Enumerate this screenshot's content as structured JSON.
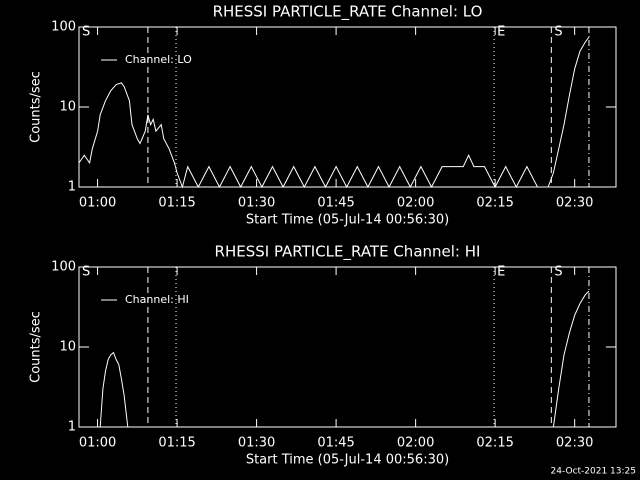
{
  "chart_data": [
    {
      "type": "line",
      "title": "RHESSI PARTICLE_RATE Channel: LO",
      "xlabel": "Start Time (05-Jul-14 00:56:30)",
      "ylabel": "Counts/sec",
      "x": [
        56.5,
        57.5,
        58.5,
        59,
        60,
        60.5,
        61.5,
        62.5,
        63.5,
        64.5,
        65,
        66,
        66.5,
        67.5,
        68,
        69,
        69.5,
        70,
        70.5,
        71,
        72,
        72.5,
        73.5,
        74.5,
        75,
        76,
        77,
        79,
        81,
        83,
        85,
        87,
        89,
        91,
        93,
        95,
        97,
        99,
        101,
        103,
        105,
        107,
        109,
        111,
        113,
        115,
        117,
        119,
        121,
        123,
        125,
        127,
        129,
        130,
        131,
        133,
        135,
        137,
        139,
        141,
        143,
        144,
        145,
        146,
        147,
        148,
        149,
        150,
        151,
        152,
        152.7
      ],
      "series": [
        {
          "name": "Channel: LO",
          "color": "#ffffff",
          "values": [
            2,
            2.5,
            2,
            3,
            5,
            8,
            12,
            16,
            19,
            20,
            18,
            12,
            6,
            4,
            3.5,
            5,
            8,
            6,
            7,
            5,
            6,
            4,
            3,
            2,
            1.5,
            1,
            1.8,
            1,
            1.8,
            1,
            1.8,
            1,
            1.8,
            1,
            1.8,
            1,
            1.8,
            1,
            1.8,
            1,
            1.8,
            1,
            1.8,
            1,
            1.8,
            1,
            1.8,
            1,
            1.8,
            1,
            1.8,
            1.8,
            1.8,
            2.5,
            1.8,
            1.8,
            1,
            1.8,
            1,
            1.8,
            1,
            1,
            1,
            1.5,
            3,
            6,
            14,
            30,
            50,
            65,
            75
          ]
        }
      ],
      "xlim": [
        56.5,
        157.8
      ],
      "ylim": [
        1,
        100
      ],
      "log_y": true,
      "xticks": [
        {
          "value": 60,
          "label": "01:00"
        },
        {
          "value": 75,
          "label": "01:15"
        },
        {
          "value": 90,
          "label": "01:30"
        },
        {
          "value": 105,
          "label": "01:45"
        },
        {
          "value": 120,
          "label": "02:00"
        },
        {
          "value": 135,
          "label": "02:15"
        },
        {
          "value": 150,
          "label": "02:30"
        }
      ],
      "yticks": [
        1,
        10,
        100
      ],
      "markers": [
        {
          "x": 56.5,
          "label": "S"
        },
        {
          "x": 69.5,
          "style": "dashed"
        },
        {
          "x": 74.8,
          "style": "dotted"
        },
        {
          "x": 134.8,
          "label": "E",
          "style": "dotted"
        },
        {
          "x": 145.6,
          "label": "S",
          "style": "dashed"
        },
        {
          "x": 152.7,
          "style": "dashdot"
        }
      ]
    },
    {
      "type": "line",
      "title": "RHESSI PARTICLE_RATE Channel: HI",
      "xlabel": "Start Time (05-Jul-14 00:56:30)",
      "ylabel": "Counts/sec",
      "x": [
        60.5,
        61,
        61.5,
        62,
        62.5,
        63,
        63.5,
        64,
        64.5,
        65,
        65.7,
        100,
        146,
        147,
        148,
        149,
        150,
        151,
        152,
        152.7
      ],
      "series": [
        {
          "name": "Channel: HI",
          "color": "#ffffff",
          "values": [
            1,
            3,
            5,
            7,
            8,
            8.5,
            7,
            6,
            4,
            2.5,
            1,
            null,
            1,
            3,
            8,
            15,
            25,
            35,
            45,
            50
          ]
        }
      ],
      "xlim": [
        56.5,
        157.8
      ],
      "ylim": [
        1,
        100
      ],
      "log_y": true,
      "xticks": [
        {
          "value": 60,
          "label": "01:00"
        },
        {
          "value": 75,
          "label": "01:15"
        },
        {
          "value": 90,
          "label": "01:30"
        },
        {
          "value": 105,
          "label": "01:45"
        },
        {
          "value": 120,
          "label": "02:00"
        },
        {
          "value": 135,
          "label": "02:15"
        },
        {
          "value": 150,
          "label": "02:30"
        }
      ],
      "yticks": [
        1,
        10,
        100
      ],
      "markers": [
        {
          "x": 56.5,
          "label": "S"
        },
        {
          "x": 69.5,
          "style": "dashed"
        },
        {
          "x": 74.8,
          "style": "dotted"
        },
        {
          "x": 134.8,
          "label": "E",
          "style": "dotted"
        },
        {
          "x": 145.6,
          "label": "S",
          "style": "dashed"
        },
        {
          "x": 152.7,
          "style": "dashdot"
        }
      ]
    }
  ],
  "footer": "24-Oct-2021 13:25"
}
